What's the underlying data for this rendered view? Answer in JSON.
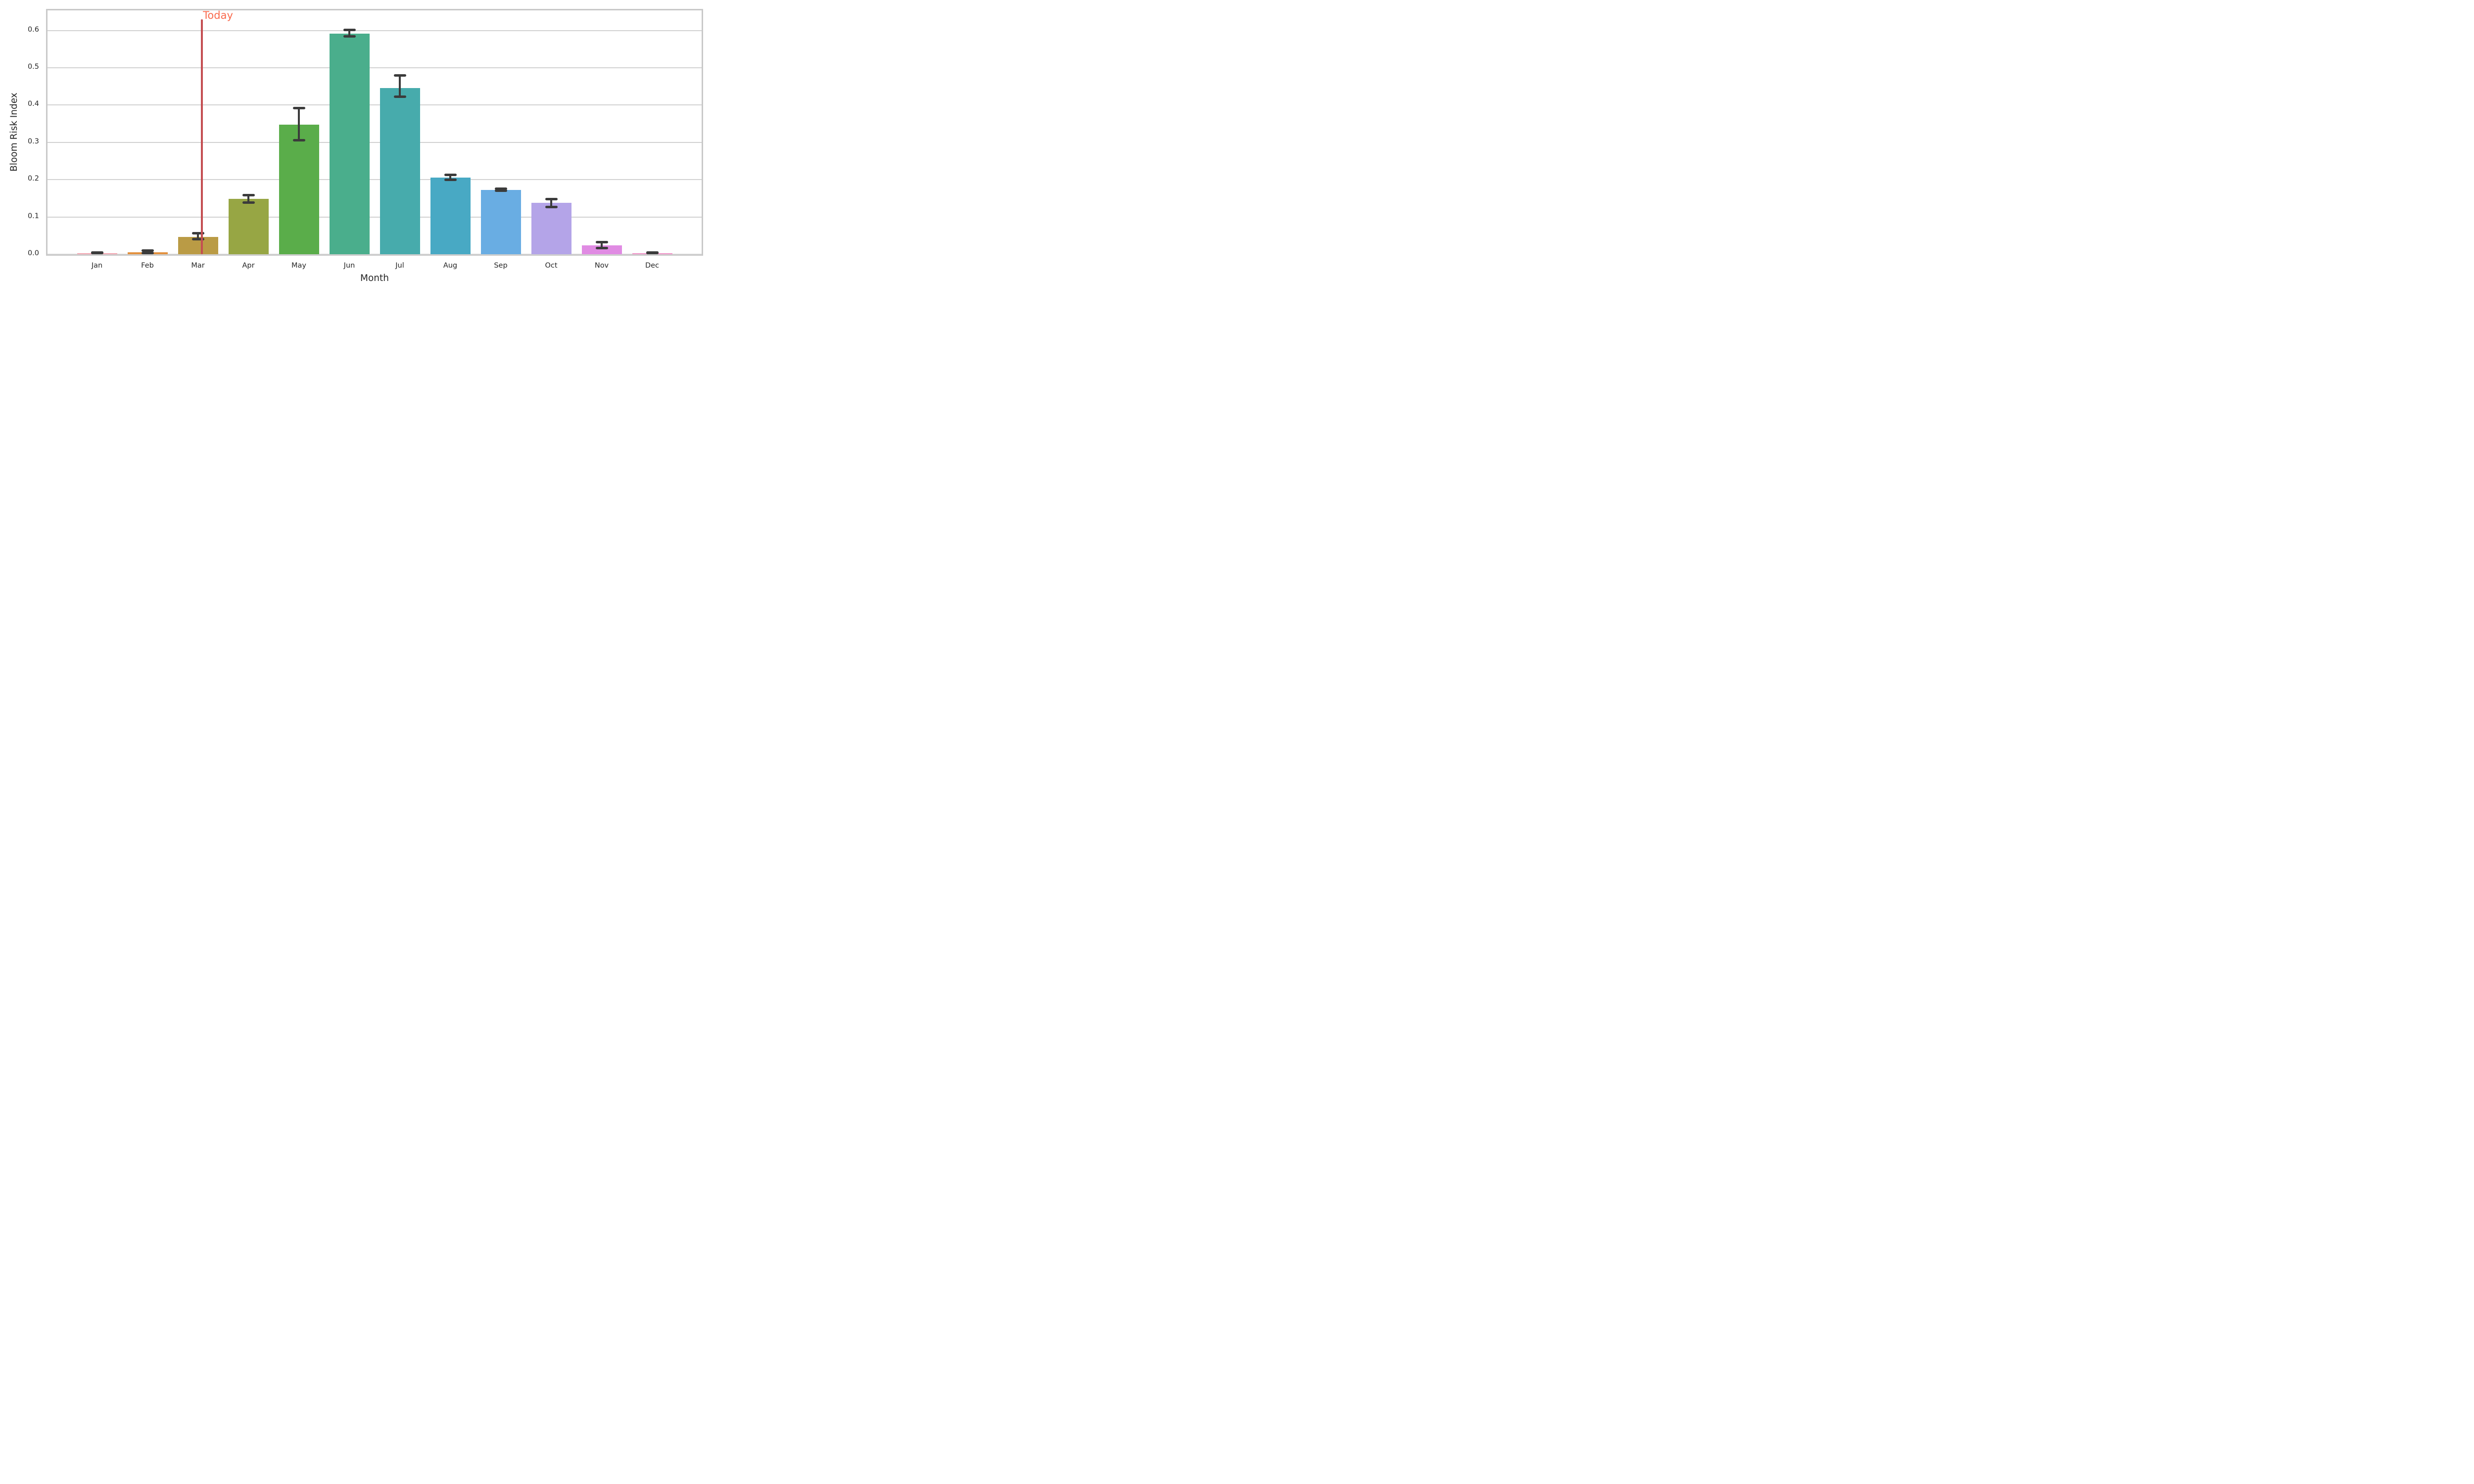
{
  "figure": {
    "background_color": "#ffffff"
  },
  "chart_data": {
    "type": "bar",
    "title": "",
    "xlabel": "Month",
    "ylabel": "Bloom Risk Index",
    "categories": [
      "Jan",
      "Feb",
      "Mar",
      "Apr",
      "May",
      "Jun",
      "Jul",
      "Aug",
      "Sep",
      "Oct",
      "Nov",
      "Dec"
    ],
    "values": [
      0.003,
      0.005,
      0.047,
      0.149,
      0.348,
      0.592,
      0.446,
      0.205,
      0.172,
      0.138,
      0.024,
      0.002
    ],
    "error_low": [
      0.001,
      0.002,
      0.041,
      0.139,
      0.306,
      0.584,
      0.423,
      0.2,
      0.17,
      0.127,
      0.017,
      0.001
    ],
    "error_high": [
      0.005,
      0.01,
      0.056,
      0.159,
      0.392,
      0.601,
      0.479,
      0.213,
      0.176,
      0.148,
      0.032,
      0.005
    ],
    "bar_colors": [
      "#f1a0ac",
      "#e2913f",
      "#ba9b45",
      "#97a644",
      "#5aad4a",
      "#4aae8c",
      "#47abac",
      "#48a9c4",
      "#69ade3",
      "#b4a4e8",
      "#e08be3",
      "#ee8dc4"
    ],
    "error_bar_color": "#3b3b3b",
    "yticks": [
      0.0,
      0.1,
      0.2,
      0.3,
      0.4,
      0.5,
      0.6
    ],
    "ytick_labels": [
      "0.0",
      "0.1",
      "0.2",
      "0.3",
      "0.4",
      "0.5",
      "0.6"
    ],
    "ylim": [
      0,
      0.654
    ],
    "grid": "horizontal",
    "legend": "none",
    "annotation": {
      "label": "Today",
      "month": "Mar",
      "month_offset": 0.08,
      "line_top_value": 0.63,
      "line_color": "#c44e52",
      "text_color": "#f96a4d"
    }
  },
  "styles": {
    "grid_color": "#d2d2d2",
    "spine_color": "#c9c9c9",
    "text_color": "#262626"
  }
}
